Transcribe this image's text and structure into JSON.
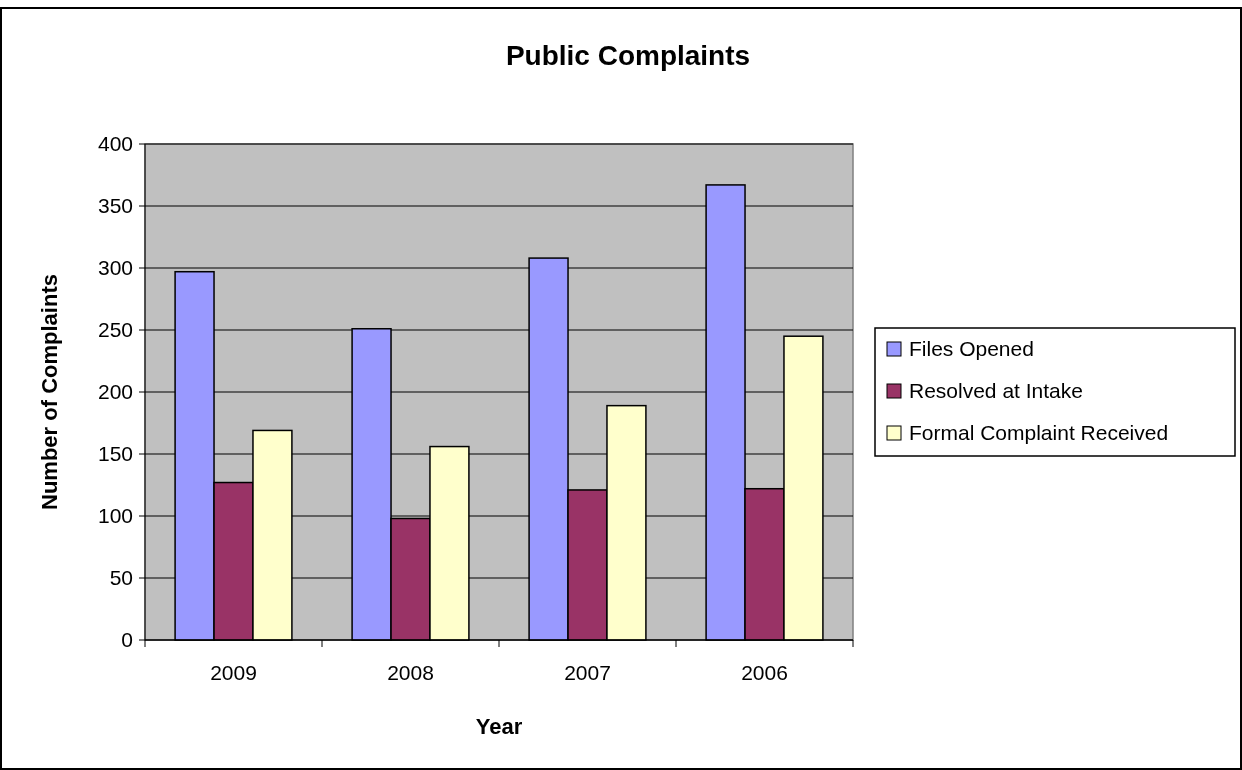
{
  "chart_data": {
    "type": "bar",
    "title": "Public Complaints",
    "xlabel": "Year",
    "ylabel": "Number of Complaints",
    "categories": [
      "2009",
      "2008",
      "2007",
      "2006"
    ],
    "series": [
      {
        "name": "Files Opened",
        "color": "#9999ff",
        "values": [
          297,
          251,
          308,
          367
        ]
      },
      {
        "name": "Resolved at Intake",
        "color": "#993366",
        "values": [
          127,
          98,
          121,
          122
        ]
      },
      {
        "name": "Formal Complaint Received",
        "color": "#ffffcc",
        "values": [
          169,
          156,
          189,
          245
        ]
      }
    ],
    "ylim": [
      0,
      400
    ],
    "yticks": [
      0,
      50,
      100,
      150,
      200,
      250,
      300,
      350,
      400
    ],
    "grid": "y",
    "legend": "right"
  }
}
